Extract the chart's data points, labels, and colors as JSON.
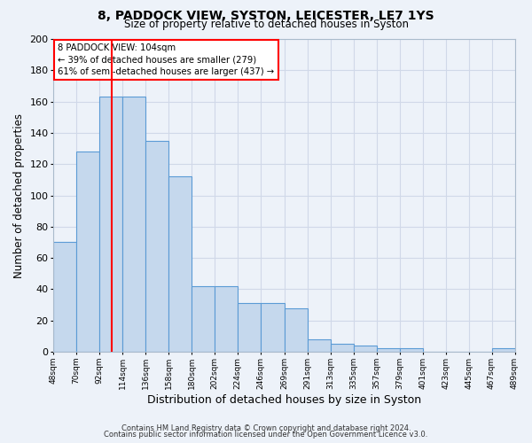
{
  "title": "8, PADDOCK VIEW, SYSTON, LEICESTER, LE7 1YS",
  "subtitle": "Size of property relative to detached houses in Syston",
  "xlabel": "Distribution of detached houses by size in Syston",
  "ylabel": "Number of detached properties",
  "bar_left_edges": [
    48,
    70,
    92,
    114,
    136,
    158,
    180,
    202,
    224,
    246,
    269,
    291,
    313,
    335,
    357,
    379,
    401,
    423,
    445,
    467
  ],
  "bar_widths": [
    22,
    22,
    22,
    22,
    22,
    22,
    22,
    22,
    22,
    23,
    22,
    22,
    22,
    22,
    22,
    22,
    22,
    22,
    22,
    22
  ],
  "bar_heights": [
    70,
    128,
    163,
    163,
    135,
    112,
    42,
    42,
    31,
    31,
    28,
    8,
    5,
    4,
    2,
    2,
    0,
    0,
    0,
    2
  ],
  "bar_color": "#c5d8ed",
  "bar_edge_color": "#5b9bd5",
  "grid_color": "#d0d8e8",
  "bg_color": "#edf2f9",
  "vline_x": 104,
  "vline_color": "red",
  "ylim": [
    0,
    200
  ],
  "yticks": [
    0,
    20,
    40,
    60,
    80,
    100,
    120,
    140,
    160,
    180,
    200
  ],
  "x_tick_labels": [
    "48sqm",
    "70sqm",
    "92sqm",
    "114sqm",
    "136sqm",
    "158sqm",
    "180sqm",
    "202sqm",
    "224sqm",
    "246sqm",
    "269sqm",
    "291sqm",
    "313sqm",
    "335sqm",
    "357sqm",
    "379sqm",
    "401sqm",
    "423sqm",
    "445sqm",
    "467sqm",
    "489sqm"
  ],
  "annotation_box_text": "8 PADDOCK VIEW: 104sqm\n← 39% of detached houses are smaller (279)\n61% of semi-detached houses are larger (437) →",
  "annotation_box_color": "red",
  "footer_line1": "Contains HM Land Registry data © Crown copyright and database right 2024.",
  "footer_line2": "Contains public sector information licensed under the Open Government Licence v3.0."
}
